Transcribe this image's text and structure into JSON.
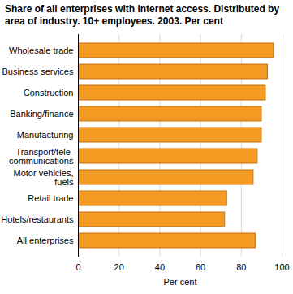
{
  "chart_data": {
    "type": "bar",
    "orientation": "horizontal",
    "title": "Share of all enterprises with Internet access. Distributed by area of industry. 10+ employees. 2003. Per cent",
    "x_label": "Per cent",
    "categories": [
      "Wholesale trade",
      "Business services",
      "Construction",
      "Banking/finance",
      "Manufacturing",
      "Transport/tele-\ncommunications",
      "Motor vehicles,\nfuels",
      "Retail trade",
      "Hotels/restaurants",
      "All enterprises"
    ],
    "values": [
      96,
      93,
      92,
      90,
      90,
      88,
      86,
      73,
      72,
      87
    ],
    "color": "#f59a23",
    "xlim": [
      0,
      100
    ],
    "xticks": [
      0,
      20,
      40,
      60,
      80,
      100
    ],
    "grid": true
  }
}
